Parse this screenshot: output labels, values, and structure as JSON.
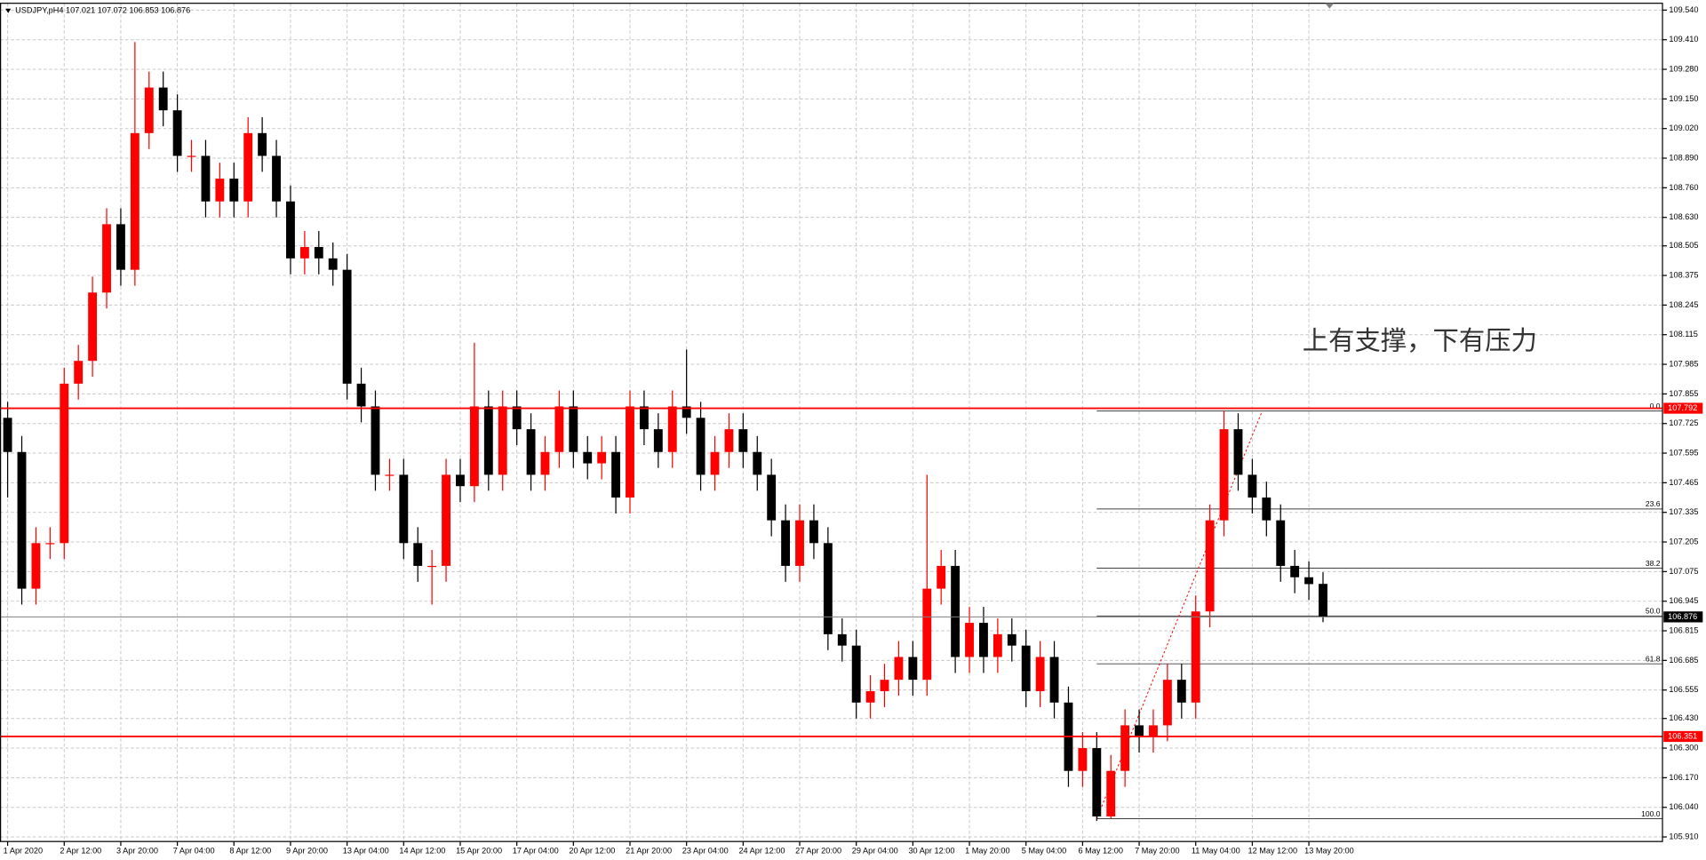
{
  "chart_data": {
    "type": "candlestick",
    "title": "USDJPY,pH4  107.021 107.072 106.853 106.876",
    "annotation": "上有支撑，下有压力",
    "up_color": "#ff0000",
    "down_color": "#000000",
    "grid": true,
    "open": [
      107.75,
      107.6,
      107.0,
      107.2,
      107.2,
      107.9,
      108.0,
      108.3,
      108.6,
      108.4,
      109.0,
      109.2,
      109.1,
      108.9,
      108.9,
      108.7,
      108.8,
      108.7,
      109.0,
      108.9,
      108.7,
      108.45,
      108.5,
      108.45,
      108.4,
      107.9,
      107.8,
      107.5,
      107.5,
      107.2,
      107.1,
      107.1,
      107.5,
      107.45,
      107.8,
      107.5,
      107.8,
      107.7,
      107.5,
      107.6,
      107.8,
      107.6,
      107.55,
      107.6,
      107.4,
      107.8,
      107.7,
      107.6,
      107.8,
      107.75,
      107.5,
      107.6,
      107.7,
      107.6,
      107.5,
      107.3,
      107.1,
      107.3,
      107.2,
      106.8,
      106.75,
      106.5,
      106.55,
      106.6,
      106.7,
      106.6,
      107.0,
      107.1,
      106.7,
      106.85,
      106.7,
      106.8,
      106.75,
      106.55,
      106.7,
      106.5,
      106.2,
      106.3,
      106.0,
      106.2,
      106.4,
      106.35,
      106.4,
      106.6,
      106.5,
      106.9,
      107.3,
      107.7,
      107.5,
      107.4,
      107.3,
      107.1,
      107.05,
      107.021
    ],
    "high": [
      107.82,
      107.67,
      107.27,
      107.27,
      107.97,
      108.07,
      108.37,
      108.67,
      108.67,
      109.4,
      109.27,
      109.27,
      109.17,
      108.97,
      108.97,
      108.87,
      108.87,
      109.07,
      109.07,
      108.97,
      108.77,
      108.57,
      108.57,
      108.52,
      108.47,
      107.97,
      107.87,
      107.57,
      107.57,
      107.27,
      107.17,
      107.57,
      107.57,
      108.08,
      107.87,
      107.87,
      107.87,
      107.77,
      107.67,
      107.87,
      107.87,
      107.67,
      107.67,
      107.67,
      107.87,
      107.87,
      107.77,
      107.87,
      108.05,
      107.82,
      107.67,
      107.77,
      107.77,
      107.67,
      107.57,
      107.37,
      107.37,
      107.37,
      107.27,
      106.87,
      106.82,
      106.62,
      106.67,
      106.77,
      106.77,
      107.5,
      107.17,
      107.17,
      106.92,
      106.92,
      106.87,
      106.87,
      106.82,
      106.77,
      106.77,
      106.57,
      106.37,
      106.37,
      106.27,
      106.47,
      106.47,
      106.47,
      106.67,
      106.67,
      106.97,
      107.37,
      107.78,
      107.77,
      107.57,
      107.47,
      107.37,
      107.17,
      107.12,
      107.072
    ],
    "low": [
      107.4,
      106.93,
      106.93,
      107.13,
      107.13,
      107.83,
      107.93,
      108.23,
      108.33,
      108.33,
      108.93,
      109.03,
      108.83,
      108.83,
      108.63,
      108.63,
      108.63,
      108.63,
      108.83,
      108.63,
      108.38,
      108.38,
      108.38,
      108.33,
      107.83,
      107.73,
      107.43,
      107.43,
      107.13,
      107.03,
      106.93,
      107.03,
      107.38,
      107.38,
      107.43,
      107.43,
      107.63,
      107.43,
      107.43,
      107.53,
      107.53,
      107.48,
      107.48,
      107.33,
      107.33,
      107.63,
      107.53,
      107.53,
      107.68,
      107.43,
      107.43,
      107.53,
      107.53,
      107.43,
      107.23,
      107.03,
      107.03,
      107.13,
      106.73,
      106.68,
      106.43,
      106.43,
      106.48,
      106.53,
      106.53,
      106.53,
      106.93,
      106.63,
      106.63,
      106.63,
      106.63,
      106.68,
      106.48,
      106.48,
      106.43,
      106.13,
      106.13,
      105.98,
      105.99,
      106.13,
      106.28,
      106.28,
      106.33,
      106.43,
      106.43,
      106.83,
      107.23,
      107.43,
      107.33,
      107.23,
      107.03,
      106.98,
      106.95,
      106.853
    ],
    "close": [
      107.6,
      107.0,
      107.2,
      107.2,
      107.9,
      108.0,
      108.3,
      108.6,
      108.4,
      109.0,
      109.2,
      109.1,
      108.9,
      108.9,
      108.7,
      108.8,
      108.7,
      109.0,
      108.9,
      108.7,
      108.45,
      108.5,
      108.45,
      108.4,
      107.9,
      107.8,
      107.5,
      107.5,
      107.2,
      107.1,
      107.1,
      107.5,
      107.45,
      107.8,
      107.5,
      107.8,
      107.7,
      107.5,
      107.6,
      107.8,
      107.6,
      107.55,
      107.6,
      107.4,
      107.8,
      107.7,
      107.6,
      107.8,
      107.75,
      107.5,
      107.6,
      107.7,
      107.6,
      107.5,
      107.3,
      107.1,
      107.3,
      107.2,
      106.8,
      106.75,
      106.5,
      106.55,
      106.6,
      106.7,
      106.6,
      107.0,
      107.1,
      106.7,
      106.85,
      106.7,
      106.8,
      106.75,
      106.55,
      106.7,
      106.5,
      106.2,
      106.3,
      106.0,
      106.2,
      106.4,
      106.35,
      106.4,
      106.6,
      106.5,
      106.9,
      107.3,
      107.7,
      107.5,
      107.4,
      107.3,
      107.1,
      107.05,
      107.02,
      106.876
    ],
    "xlim": [
      -0.54,
      117
    ],
    "xticks": [
      {
        "value": 0,
        "label": "1 Apr 2020"
      },
      {
        "value": 4,
        "label": "2 Apr 12:00"
      },
      {
        "value": 8,
        "label": "3 Apr 20:00"
      },
      {
        "value": 12,
        "label": "7 Apr 04:00"
      },
      {
        "value": 16,
        "label": "8 Apr 12:00"
      },
      {
        "value": 20,
        "label": "9 Apr 20:00"
      },
      {
        "value": 24,
        "label": "13 Apr 04:00"
      },
      {
        "value": 28,
        "label": "14 Apr 12:00"
      },
      {
        "value": 32,
        "label": "15 Apr 20:00"
      },
      {
        "value": 36,
        "label": "17 Apr 04:00"
      },
      {
        "value": 40,
        "label": "20 Apr 12:00"
      },
      {
        "value": 44,
        "label": "21 Apr 20:00"
      },
      {
        "value": 48,
        "label": "23 Apr 04:00"
      },
      {
        "value": 52,
        "label": "24 Apr 12:00"
      },
      {
        "value": 56,
        "label": "27 Apr 20:00"
      },
      {
        "value": 60,
        "label": "29 Apr 04:00"
      },
      {
        "value": 64,
        "label": "30 Apr 12:00"
      },
      {
        "value": 68,
        "label": "1 May 20:00"
      },
      {
        "value": 72,
        "label": "5 May 04:00"
      },
      {
        "value": 76,
        "label": "6 May 12:00"
      },
      {
        "value": 80,
        "label": "7 May 20:00"
      },
      {
        "value": 84,
        "label": "11 May 04:00"
      },
      {
        "value": 88,
        "label": "12 May 12:00"
      },
      {
        "value": 92,
        "label": "13 May 20:00"
      }
    ],
    "ylim": [
      105.89,
      109.57
    ],
    "yticks": [
      {
        "value": 109.54,
        "label": "109.540"
      },
      {
        "value": 109.41,
        "label": "109.410"
      },
      {
        "value": 109.28,
        "label": "109.280"
      },
      {
        "value": 109.15,
        "label": "109.150"
      },
      {
        "value": 109.02,
        "label": "109.020"
      },
      {
        "value": 108.89,
        "label": "108.890"
      },
      {
        "value": 108.76,
        "label": "108.760"
      },
      {
        "value": 108.63,
        "label": "108.630"
      },
      108.505,
      108.375,
      108.245,
      108.115,
      107.985,
      107.855,
      107.725,
      107.595,
      107.465,
      107.335,
      107.205,
      107.075,
      106.945,
      106.815,
      106.685,
      106.555,
      {
        "value": 106.43,
        "label": "106.430"
      },
      {
        "value": 106.3,
        "label": "106.300"
      },
      {
        "value": 106.17,
        "label": "106.170"
      },
      {
        "value": 106.04,
        "label": "106.040"
      },
      {
        "value": 105.91,
        "label": "105.910"
      }
    ],
    "levels": [
      {
        "price": 107.792,
        "color": "#ff0000"
      },
      {
        "price": 106.351,
        "color": "#ff0000"
      },
      {
        "price": 106.876,
        "color": "#000000"
      }
    ],
    "fibo": {
      "from": 77,
      "color": "#404040",
      "levels": [
        {
          "ratio": "0.0",
          "price": 107.78
        },
        {
          "ratio": "23.6",
          "price": 107.35
        },
        {
          "ratio": "38.2",
          "price": 107.09
        },
        {
          "ratio": "50.0",
          "price": 106.88
        },
        {
          "ratio": "61.8",
          "price": 106.67
        },
        {
          "ratio": "100.0",
          "price": 105.99
        }
      ]
    },
    "trendline": {
      "x": [
        77,
        88.7
      ],
      "y": [
        105.99,
        107.78
      ],
      "color": "#ff0000"
    }
  }
}
